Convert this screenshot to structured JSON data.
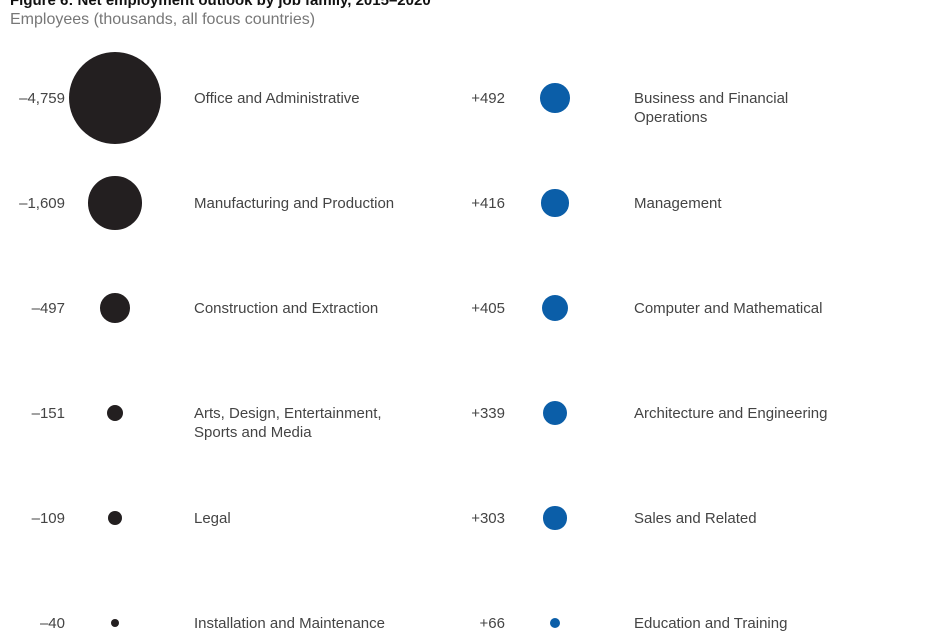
{
  "chart_data": {
    "type": "bubble",
    "title": "Figure 6: Net employment outlook by job family, 2015–2020",
    "subtitle": "Employees (thousands, all focus countries)",
    "colors": {
      "negative": "#231f20",
      "positive": "#0b5ea8"
    },
    "declining": [
      {
        "value_label": "–4,759",
        "value": -4759,
        "label": "Office and Administrative"
      },
      {
        "value_label": "–1,609",
        "value": -1609,
        "label": "Manufacturing and Production"
      },
      {
        "value_label": "–497",
        "value": -497,
        "label": "Construction and Extraction"
      },
      {
        "value_label": "–151",
        "value": -151,
        "label": "Arts, Design, Entertainment, Sports and Media"
      },
      {
        "value_label": "–109",
        "value": -109,
        "label": "Legal"
      },
      {
        "value_label": "–40",
        "value": -40,
        "label": "Installation and Maintenance"
      }
    ],
    "growing": [
      {
        "value_label": "+492",
        "value": 492,
        "label": "Business and Financial Operations"
      },
      {
        "value_label": "+416",
        "value": 416,
        "label": "Management"
      },
      {
        "value_label": "+405",
        "value": 405,
        "label": "Computer and Mathematical"
      },
      {
        "value_label": "+339",
        "value": 339,
        "label": "Architecture and Engineering"
      },
      {
        "value_label": "+303",
        "value": 303,
        "label": "Sales and Related"
      },
      {
        "value_label": "+66",
        "value": 66,
        "label": "Education and Training"
      }
    ]
  }
}
